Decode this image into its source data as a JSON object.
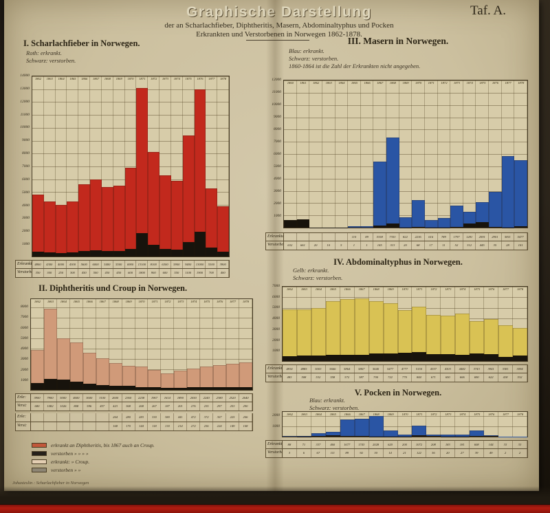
{
  "header": {
    "title": "Graphische Darstellung",
    "subtitle1": "der an Scharlachfieber, Diphtheritis, Masern, Abdominaltyphus und Pocken",
    "subtitle2": "Erkrankten und Verstorbenen in Norwegen 1862-1878.",
    "plate": "Taf. A."
  },
  "footer": {
    "caption": "Johasteslin : Scharlachfieber in Norwegen"
  },
  "legend": {
    "items": [
      {
        "swatch": "#c2573a",
        "label": "erkrankt an Diphtheritis, bis 1867 auch an Croup."
      },
      {
        "swatch": "#26211a",
        "label": "verstorben  »  »  »  »"
      },
      {
        "swatch": "#e3ceb2",
        "label": "erkrankt:  »  Croup."
      },
      {
        "swatch": "#8d8574",
        "label": "verstorben  »  »"
      }
    ]
  },
  "chart_data": [
    {
      "id": "scharlachfieber",
      "type": "bar",
      "title": "I. Scharlachfieber in Norwegen.",
      "legend": [
        "Roth: erkrankt.",
        "Schwarz: verstorben."
      ],
      "categories": [
        "1862",
        "1863",
        "1864",
        "1865",
        "1866",
        "1867",
        "1868",
        "1869",
        "1870",
        "1871",
        "1872",
        "1873",
        "1874",
        "1875",
        "1876",
        "1877",
        "1878"
      ],
      "series": [
        {
          "key": "erkrankte",
          "name": "Erkrankte",
          "color": "#c2291d",
          "values": [
            4800,
            4300,
            4000,
            4300,
            5600,
            6000,
            5400,
            5500,
            6900,
            13100,
            8100,
            6300,
            5900,
            9400,
            13000,
            5300,
            3900
          ]
        },
        {
          "key": "verstorbene",
          "name": "Verstorbene",
          "color": "#17130c",
          "values": [
            350,
            300,
            250,
            300,
            450,
            500,
            430,
            450,
            600,
            1800,
            900,
            600,
            550,
            1100,
            1900,
            700,
            400
          ]
        }
      ],
      "ylim": [
        0,
        14000
      ],
      "yticks": [
        1000,
        2000,
        3000,
        4000,
        5000,
        6000,
        7000,
        8000,
        9000,
        10000,
        11000,
        12000,
        13000,
        14000
      ]
    },
    {
      "id": "masern",
      "type": "bar",
      "title": "III. Masern in Norwegen.",
      "legend": [
        "Blau: erkrankt.",
        "Schwarz: verstorben.",
        "1860-1864 ist die Zahl der Erkrankten nicht angegeben."
      ],
      "categories": [
        "1860",
        "1861",
        "1862",
        "1863",
        "1864",
        "1865",
        "1866",
        "1867",
        "1868",
        "1869",
        "1870",
        "1871",
        "1872",
        "1873",
        "1874",
        "1875",
        "1876",
        "1877",
        "1878"
      ],
      "series": [
        {
          "key": "erkrankte",
          "name": "Erkrankte",
          "color": "#2a55a4",
          "values": [
            null,
            null,
            null,
            null,
            null,
            110,
            89,
            5358,
            7353,
            822,
            2236,
            616,
            789,
            1797,
            1281,
            2091,
            2901,
            5811,
            5477
          ]
        },
        {
          "key": "verstorbene",
          "name": "Verstorbene",
          "color": "#17130c",
          "values": [
            632,
            661,
            20,
            10,
            5,
            1,
            1,
            145,
            313,
            20,
            68,
            17,
            11,
            52,
            312,
            445,
            35,
            28,
            101
          ]
        }
      ],
      "ylim": [
        0,
        12000
      ],
      "yticks": [
        1000,
        2000,
        3000,
        4000,
        5000,
        6000,
        7000,
        8000,
        9000,
        10000,
        11000,
        12000
      ]
    },
    {
      "id": "diphtheritis-croup",
      "type": "bar",
      "title": "II. Diphtheritis und Croup in Norwegen.",
      "legend": [],
      "categories": [
        "1862",
        "1863",
        "1864",
        "1865",
        "1866",
        "1867",
        "1868",
        "1869",
        "1870",
        "1871",
        "1872",
        "1873",
        "1874",
        "1875",
        "1876",
        "1877",
        "1878"
      ],
      "series": [
        {
          "key": "erkrankte",
          "name": "Erkr:",
          "color": "#d09a79",
          "values": [
            3900,
            7900,
            5000,
            4600,
            3600,
            3100,
            2600,
            2360,
            2258,
            1967,
            1614,
            1890,
            2050,
            2240,
            2380,
            2520,
            2640
          ]
        },
        {
          "key": "verstorbene",
          "name": "Verst:",
          "color": "#17130c",
          "values": [
            680,
            1082,
            1026,
            808,
            596,
            457,
            423,
            368,
            268,
            267,
            187,
            201,
            276,
            235,
            297,
            253,
            290
          ]
        }
      ],
      "extra_rows": [
        {
          "label": "Erkr:",
          "values": [
            null,
            null,
            null,
            null,
            null,
            null,
            264,
            280,
            283,
            330,
            380,
            441,
            472,
            372,
            307,
            225,
            206
          ]
        },
        {
          "label": "Verst:",
          "values": [
            null,
            null,
            null,
            null,
            null,
            null,
            168,
            170,
            144,
            118,
            130,
            214,
            272,
            236,
            224,
            149,
            108
          ]
        }
      ],
      "gap_before_row": 2,
      "ylim": [
        0,
        8800
      ],
      "yticks": [
        1000,
        2000,
        3000,
        4000,
        5000,
        6000,
        7000,
        8000
      ]
    },
    {
      "id": "abdominaltyphus",
      "type": "bar",
      "title": "IV. Abdominaltyphus in Norwegen.",
      "legend": [
        "Gelb: erkrankt.",
        "Schwarz: verstorben."
      ],
      "categories": [
        "1862",
        "1863",
        "1864",
        "1865",
        "1866",
        "1867",
        "1868",
        "1869",
        "1870",
        "1871",
        "1872",
        "1873",
        "1874",
        "1875",
        "1876",
        "1877",
        "1878"
      ],
      "series": [
        {
          "key": "erkrankte",
          "name": "Erkrankte",
          "color": "#d9c254",
          "values": [
            4834,
            4885,
            5003,
            5666,
            5864,
            5867,
            5640,
            5477,
            4777,
            5150,
            4357,
            4303,
            4482,
            3743,
            3941,
            3381,
            3094
          ]
        },
        {
          "key": "verstorbene",
          "name": "Verstorbene",
          "color": "#17130c",
          "values": [
            483,
            508,
            532,
            558,
            572,
            587,
            700,
            722,
            770,
            844,
            671,
            650,
            606,
            690,
            622,
            418,
            532
          ]
        }
      ],
      "ylim": [
        0,
        7000
      ],
      "yticks": [
        1000,
        2000,
        3000,
        4000,
        5000,
        6000,
        7000
      ]
    },
    {
      "id": "pocken",
      "type": "bar",
      "title": "V. Pocken in Norwegen.",
      "legend": [
        "Blau: erkrankt.",
        "Schwarz: verstorben."
      ],
      "categories": [
        "1862",
        "1863",
        "1864",
        "1865",
        "1866",
        "1867",
        "1868",
        "1869",
        "1870",
        "1871",
        "1872",
        "1873",
        "1874",
        "1875",
        "1876",
        "1877",
        "1878"
      ],
      "series": [
        {
          "key": "erkrankte",
          "name": "Erkrankte",
          "color": "#2a55a4",
          "values": [
            88,
            71,
            337,
            460,
            1677,
            1743,
            2028,
            620,
            200,
            1072,
            208,
            183,
            181,
            608,
            144,
            33,
            33
          ]
        },
        {
          "key": "verstorbene",
          "name": "Verstorbene",
          "color": "#17130c",
          "values": [
            3,
            6,
            67,
            111,
            89,
            92,
            30,
            14,
            21,
            122,
            36,
            20,
            27,
            39,
            49,
            2,
            2
          ]
        }
      ],
      "ylim": [
        0,
        2400
      ],
      "yticks": [
        1000,
        2000
      ]
    }
  ]
}
